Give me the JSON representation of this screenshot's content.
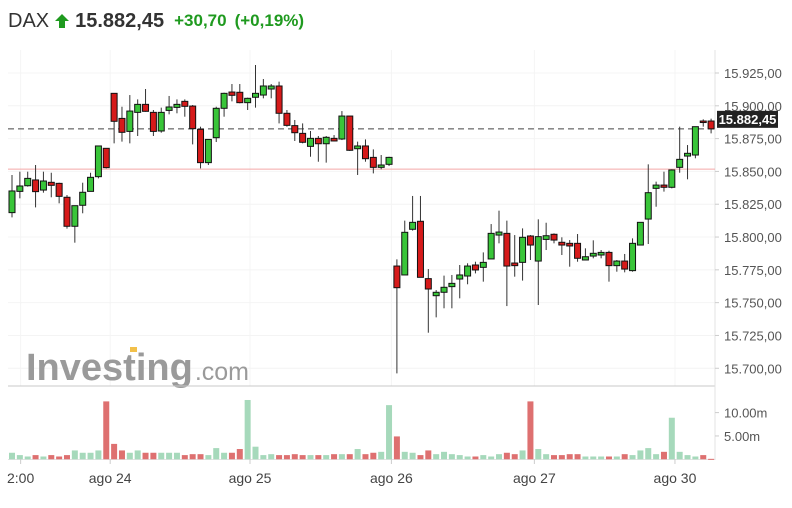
{
  "header": {
    "symbol": "DAX",
    "direction_icon": "arrow-up-icon",
    "last_price": "15.882,45",
    "change": "+30,70",
    "change_percent": "(+0,19%)",
    "color_up": "#1f9a1f"
  },
  "watermark": {
    "brand": "Investing",
    "suffix": ".com"
  },
  "colors": {
    "candle_up": "#39c539",
    "candle_down": "#d61a1a",
    "volume_up": "#a6d9bb",
    "volume_down": "#de7070",
    "prev_close_line": "#f4a8a8",
    "last_price_line": "#444444",
    "last_price_box": "#222222"
  },
  "chart_data": {
    "type": "candlestick",
    "price_axis": {
      "ylim": [
        15690,
        15935
      ],
      "ticks": [
        {
          "value": 15925,
          "label": "15.925,00"
        },
        {
          "value": 15900,
          "label": "15.900,00"
        },
        {
          "value": 15875,
          "label": "15.875,00"
        },
        {
          "value": 15850,
          "label": "15.850,00"
        },
        {
          "value": 15825,
          "label": "15.825,00"
        },
        {
          "value": 15800,
          "label": "15.800,00"
        },
        {
          "value": 15775,
          "label": "15.775,00"
        },
        {
          "value": 15750,
          "label": "15.750,00"
        },
        {
          "value": 15725,
          "label": "15.725,00"
        },
        {
          "value": 15700,
          "label": "15.700,00"
        }
      ]
    },
    "last_price": {
      "value": 15882.45,
      "label": "15.882,45"
    },
    "previous_close": 15851.75,
    "volume_axis": {
      "ylim": [
        0,
        14
      ],
      "ticks": [
        {
          "value": 10,
          "label": "10.00m"
        },
        {
          "value": 5,
          "label": "5.00m"
        }
      ]
    },
    "x_ticks": [
      {
        "label": "2:00",
        "at_bar": 1.1
      },
      {
        "label": "ago 24",
        "at_bar": 12.5
      },
      {
        "label": "ago 25",
        "at_bar": 30.3
      },
      {
        "label": "ago 26",
        "at_bar": 48.3
      },
      {
        "label": "ago 27",
        "at_bar": 66.5
      },
      {
        "label": "ago 30",
        "at_bar": 84.4
      }
    ],
    "ohlc": [
      [
        15818.6,
        15847.3,
        15815.0,
        15835.1
      ],
      [
        15834.8,
        15849.8,
        15829.5,
        15838.9
      ],
      [
        15839.1,
        15849.8,
        15838.4,
        15844.7
      ],
      [
        15843.5,
        15854.9,
        15822.6,
        15834.6
      ],
      [
        15835.8,
        15849.8,
        15833.8,
        15842.7
      ],
      [
        15841.7,
        15849.0,
        15830.3,
        15839.4
      ],
      [
        15840.9,
        15841.4,
        15825.7,
        15831.0
      ],
      [
        15830.3,
        15832.0,
        15806.4,
        15808.2
      ],
      [
        15808.2,
        15823.9,
        15795.7,
        15823.9
      ],
      [
        15824.2,
        15841.4,
        15818.1,
        15834.1
      ],
      [
        15834.8,
        15849.0,
        15834.8,
        15845.5
      ],
      [
        15846.0,
        15869.4,
        15844.7,
        15869.4
      ],
      [
        15867.6,
        15867.6,
        15852.3,
        15852.9
      ],
      [
        15909.5,
        15909.5,
        15871.4,
        15888.2
      ],
      [
        15890.4,
        15899.3,
        15872.7,
        15879.8
      ],
      [
        15880.5,
        15908.2,
        15871.4,
        15896.0
      ],
      [
        15895.0,
        15904.9,
        15877.0,
        15901.1
      ],
      [
        15901.1,
        15912.8,
        15895.5,
        15895.8
      ],
      [
        15895.0,
        15896.8,
        15877.0,
        15880.5
      ],
      [
        15880.8,
        15898.6,
        15879.5,
        15895.0
      ],
      [
        15896.5,
        15907.5,
        15893.5,
        15899.1
      ],
      [
        15898.8,
        15904.9,
        15894.3,
        15901.1
      ],
      [
        15903.4,
        15904.9,
        15891.7,
        15899.6
      ],
      [
        15899.8,
        15900.6,
        15870.6,
        15882.6
      ],
      [
        15882.1,
        15884.1,
        15852.3,
        15856.7
      ],
      [
        15856.7,
        15874.4,
        15854.9,
        15874.4
      ],
      [
        15875.7,
        15899.3,
        15872.4,
        15898.1
      ],
      [
        15898.1,
        15910.0,
        15891.7,
        15909.5
      ],
      [
        15910.5,
        15916.6,
        15903.4,
        15908.0
      ],
      [
        15910.3,
        15916.6,
        15901.9,
        15902.4
      ],
      [
        15902.4,
        15906.2,
        15896.8,
        15905.7
      ],
      [
        15906.5,
        15931.1,
        15898.6,
        15909.5
      ],
      [
        15908.2,
        15920.4,
        15905.7,
        15915.1
      ],
      [
        15912.8,
        15916.6,
        15905.7,
        15915.1
      ],
      [
        15915.1,
        15918.4,
        15886.6,
        15894.3
      ],
      [
        15894.3,
        15896.8,
        15884.1,
        15885.1
      ],
      [
        15884.9,
        15889.2,
        15873.2,
        15879.5
      ],
      [
        15879.0,
        15886.6,
        15871.4,
        15872.2
      ],
      [
        15869.1,
        15880.8,
        15861.2,
        15875.2
      ],
      [
        15875.2,
        15877.0,
        15857.4,
        15871.1
      ],
      [
        15871.1,
        15877.0,
        15856.7,
        15876.0
      ],
      [
        15875.2,
        15877.7,
        15872.9,
        15873.2
      ],
      [
        15874.7,
        15896.0,
        15873.9,
        15892.2
      ],
      [
        15892.2,
        15892.2,
        15865.6,
        15866.1
      ],
      [
        15867.3,
        15872.7,
        15847.3,
        15869.4
      ],
      [
        15869.4,
        15874.4,
        15857.4,
        15859.7
      ],
      [
        15860.7,
        15866.8,
        15848.5,
        15853.1
      ],
      [
        15853.1,
        15862.5,
        15851.6,
        15854.9
      ],
      [
        15855.4,
        15861.2,
        15854.1,
        15860.7
      ],
      [
        15777.9,
        15783.0,
        15696.1,
        15761.4
      ],
      [
        15771.1,
        15812.5,
        15771.1,
        15803.6
      ],
      [
        15805.9,
        15831.3,
        15804.9,
        15811.2
      ],
      [
        15812.0,
        15831.3,
        15769.3,
        15769.3
      ],
      [
        15768.3,
        15775.6,
        15727.1,
        15760.4
      ],
      [
        15755.3,
        15759.6,
        15738.8,
        15757.9
      ],
      [
        15757.9,
        15770.6,
        15745.7,
        15761.7
      ],
      [
        15762.2,
        15771.1,
        15745.7,
        15764.7
      ],
      [
        15768.0,
        15778.7,
        15753.3,
        15771.1
      ],
      [
        15770.3,
        15780.0,
        15764.0,
        15777.9
      ],
      [
        15778.7,
        15781.2,
        15772.3,
        15774.9
      ],
      [
        15776.9,
        15788.3,
        15766.0,
        15780.7
      ],
      [
        15783.3,
        15809.9,
        15783.3,
        15802.8
      ],
      [
        15801.5,
        15820.1,
        15795.2,
        15803.8
      ],
      [
        15802.8,
        15812.5,
        15747.4,
        15777.9
      ],
      [
        15780.2,
        15801.5,
        15769.8,
        15778.2
      ],
      [
        15780.7,
        15806.6,
        15766.8,
        15799.8
      ],
      [
        15800.8,
        15801.5,
        15782.5,
        15793.9
      ],
      [
        15781.7,
        15813.5,
        15748.2,
        15800.3
      ],
      [
        15798.2,
        15810.9,
        15790.1,
        15801.0
      ],
      [
        15802.1,
        15802.8,
        15795.2,
        15797.7
      ],
      [
        15796.0,
        15799.8,
        15786.3,
        15793.9
      ],
      [
        15795.2,
        15797.7,
        15777.4,
        15793.2
      ],
      [
        15795.2,
        15802.3,
        15781.2,
        15783.8
      ],
      [
        15782.5,
        15791.4,
        15782.5,
        15785.0
      ],
      [
        15785.5,
        15797.5,
        15783.8,
        15787.6
      ],
      [
        15786.3,
        15790.1,
        15783.8,
        15788.3
      ],
      [
        15788.3,
        15789.6,
        15766.0,
        15778.2
      ],
      [
        15778.2,
        15782.5,
        15773.6,
        15781.7
      ],
      [
        15781.7,
        15787.1,
        15773.1,
        15775.6
      ],
      [
        15774.4,
        15799.0,
        15773.6,
        15795.2
      ],
      [
        15793.9,
        15811.2,
        15793.9,
        15811.2
      ],
      [
        15813.7,
        15855.4,
        15794.7,
        15833.8
      ],
      [
        15837.1,
        15842.2,
        15823.1,
        15839.6
      ],
      [
        15839.6,
        15849.8,
        15834.6,
        15837.9
      ],
      [
        15837.9,
        15851.6,
        15837.1,
        15851.1
      ],
      [
        15853.1,
        15884.1,
        15849.0,
        15859.2
      ],
      [
        15861.7,
        15870.1,
        15844.0,
        15863.8
      ],
      [
        15862.5,
        15884.1,
        15860.0,
        15884.1
      ],
      [
        15888.4,
        15889.7,
        15884.1,
        15887.4
      ],
      [
        15888.4,
        15890.2,
        15879.0,
        15882.45
      ]
    ],
    "volume_millions": [
      1.4,
      0.9,
      0.6,
      0.9,
      0.6,
      0.9,
      0.6,
      0.9,
      1.9,
      1.4,
      1.4,
      1.9,
      12.4,
      3.3,
      1.9,
      1.4,
      1.9,
      1.4,
      1.4,
      1.4,
      1.4,
      1.4,
      0.9,
      1.1,
      1.1,
      0.9,
      2.4,
      1.4,
      1.4,
      2.2,
      12.7,
      2.7,
      0.9,
      1.1,
      0.9,
      0.9,
      1.1,
      0.9,
      0.9,
      0.9,
      0.9,
      1.1,
      1.1,
      1.1,
      2.2,
      1.1,
      1.4,
      1.6,
      11.6,
      4.9,
      1.6,
      1.4,
      0.9,
      1.9,
      1.1,
      1.6,
      1.1,
      0.9,
      0.6,
      0.6,
      0.9,
      0.6,
      1.1,
      1.4,
      1.1,
      1.9,
      12.4,
      2.2,
      1.1,
      0.9,
      0.9,
      1.1,
      1.1,
      0.6,
      0.6,
      0.6,
      0.6,
      0.6,
      1.1,
      0.9,
      1.9,
      2.4,
      1.1,
      1.6,
      8.9,
      1.6,
      0.9,
      0.6,
      0.9,
      0.1
    ]
  }
}
